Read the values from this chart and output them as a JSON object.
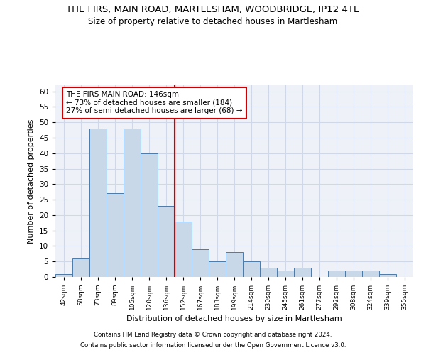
{
  "title_line1": "THE FIRS, MAIN ROAD, MARTLESHAM, WOODBRIDGE, IP12 4TE",
  "title_line2": "Size of property relative to detached houses in Martlesham",
  "xlabel": "Distribution of detached houses by size in Martlesham",
  "ylabel": "Number of detached properties",
  "categories": [
    "42sqm",
    "58sqm",
    "73sqm",
    "89sqm",
    "105sqm",
    "120sqm",
    "136sqm",
    "152sqm",
    "167sqm",
    "183sqm",
    "199sqm",
    "214sqm",
    "230sqm",
    "245sqm",
    "261sqm",
    "277sqm",
    "292sqm",
    "308sqm",
    "324sqm",
    "339sqm",
    "355sqm"
  ],
  "values": [
    1,
    6,
    48,
    27,
    48,
    40,
    23,
    18,
    9,
    5,
    8,
    5,
    3,
    2,
    3,
    0,
    2,
    2,
    2,
    1,
    0
  ],
  "bar_color": "#c8d8e8",
  "bar_edge_color": "#4a7aaa",
  "grid_color": "#d0d8e8",
  "bg_color": "#eef2f8",
  "annotation_text": "THE FIRS MAIN ROAD: 146sqm\n← 73% of detached houses are smaller (184)\n27% of semi-detached houses are larger (68) →",
  "vline_x_index": 6.5,
  "vline_color": "#cc0000",
  "annotation_box_color": "#cc0000",
  "ylim": [
    0,
    62
  ],
  "yticks": [
    0,
    5,
    10,
    15,
    20,
    25,
    30,
    35,
    40,
    45,
    50,
    55,
    60
  ],
  "footer_line1": "Contains HM Land Registry data © Crown copyright and database right 2024.",
  "footer_line2": "Contains public sector information licensed under the Open Government Licence v3.0."
}
